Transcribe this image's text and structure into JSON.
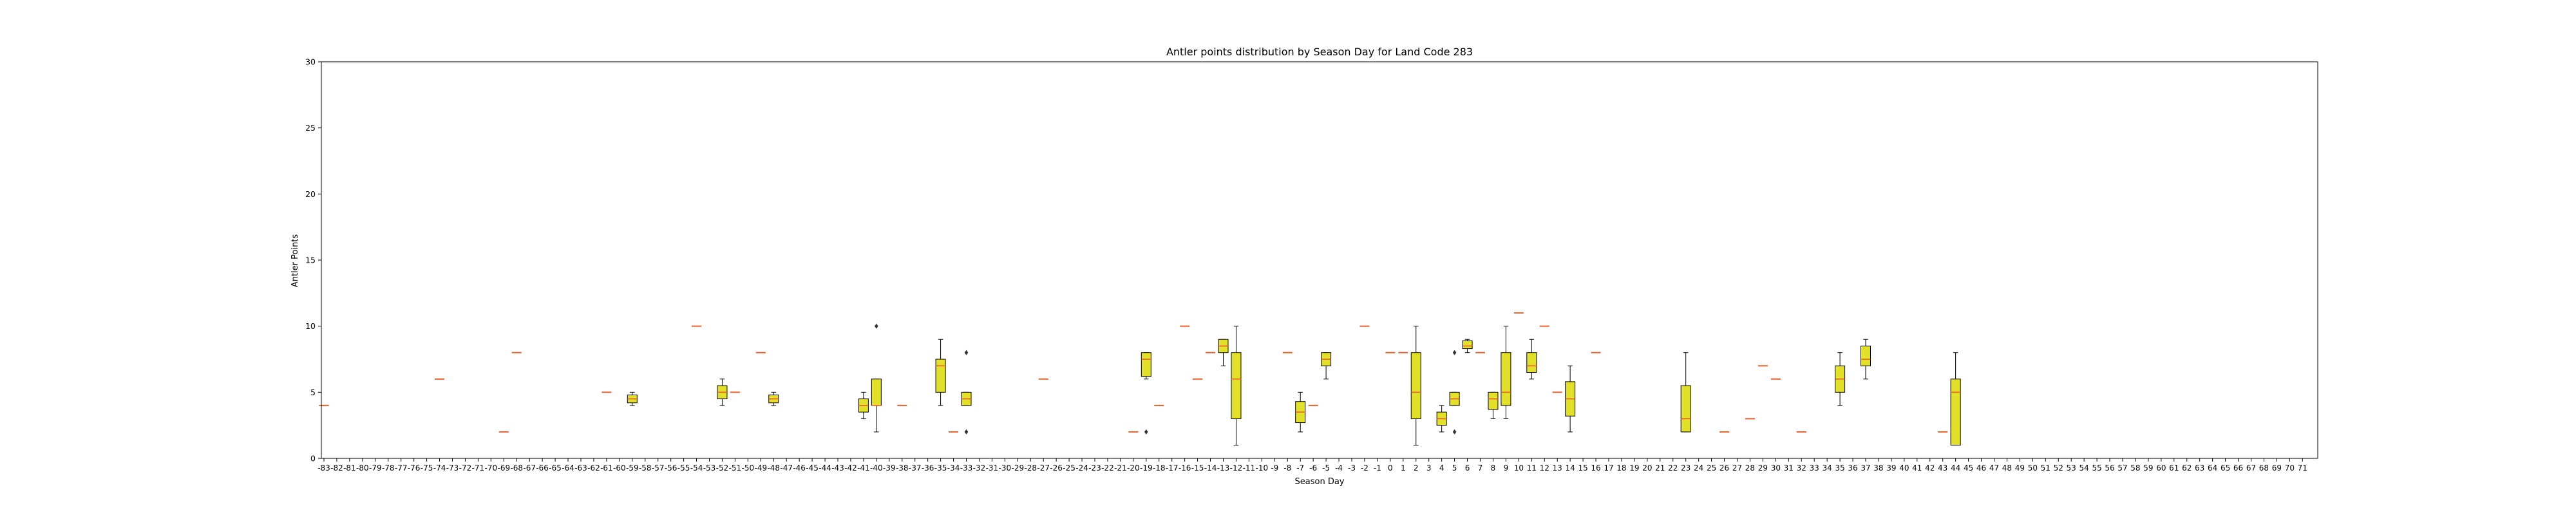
{
  "chart_data": {
    "type": "box",
    "title": "Antler points distribution by Season Day for Land Code 283",
    "xlabel": "Season Day",
    "ylabel": "Antler Points",
    "ylim": [
      0,
      30
    ],
    "yticks": [
      0,
      5,
      10,
      15,
      20,
      25,
      30
    ],
    "xlim": [
      -83,
      71
    ],
    "grid": false,
    "colors": {
      "box_fill": "#e3e02a",
      "median": "#e8612c",
      "frame": "#000000"
    },
    "single_values": [
      {
        "day": -83,
        "value": 4
      },
      {
        "day": -74,
        "value": 6
      },
      {
        "day": -69,
        "value": 2
      },
      {
        "day": -68,
        "value": 8
      },
      {
        "day": -61,
        "value": 5
      },
      {
        "day": -54,
        "value": 10
      },
      {
        "day": -51,
        "value": 5
      },
      {
        "day": -49,
        "value": 8
      },
      {
        "day": -38,
        "value": 4
      },
      {
        "day": -34,
        "value": 2
      },
      {
        "day": -27,
        "value": 6
      },
      {
        "day": -20,
        "value": 2
      },
      {
        "day": -18,
        "value": 4
      },
      {
        "day": -16,
        "value": 10
      },
      {
        "day": -15,
        "value": 6
      },
      {
        "day": -14,
        "value": 8
      },
      {
        "day": -8,
        "value": 8
      },
      {
        "day": -6,
        "value": 4
      },
      {
        "day": -2,
        "value": 10
      },
      {
        "day": 0,
        "value": 8
      },
      {
        "day": 1,
        "value": 8
      },
      {
        "day": 7,
        "value": 8
      },
      {
        "day": 10,
        "value": 11
      },
      {
        "day": 12,
        "value": 10
      },
      {
        "day": 13,
        "value": 5
      },
      {
        "day": 16,
        "value": 8
      },
      {
        "day": 26,
        "value": 2
      },
      {
        "day": 28,
        "value": 3
      },
      {
        "day": 29,
        "value": 7
      },
      {
        "day": 30,
        "value": 6
      },
      {
        "day": 32,
        "value": 2
      },
      {
        "day": 43,
        "value": 2
      }
    ],
    "boxes": [
      {
        "day": -59,
        "min": 4,
        "q1": 4.2,
        "median": 4.5,
        "q3": 4.8,
        "max": 5,
        "outliers": []
      },
      {
        "day": -52,
        "min": 4,
        "q1": 4.5,
        "median": 5,
        "q3": 5.5,
        "max": 6,
        "outliers": []
      },
      {
        "day": -48,
        "min": 4,
        "q1": 4.2,
        "median": 4.5,
        "q3": 4.8,
        "max": 5,
        "outliers": []
      },
      {
        "day": -41,
        "min": 3,
        "q1": 3.5,
        "median": 4,
        "q3": 4.5,
        "max": 5,
        "outliers": []
      },
      {
        "day": -40,
        "min": 2,
        "q1": 4,
        "median": 4,
        "q3": 6,
        "max": 6,
        "outliers": [
          10
        ]
      },
      {
        "day": -35,
        "min": 4,
        "q1": 5,
        "median": 7,
        "q3": 7.5,
        "max": 9,
        "outliers": []
      },
      {
        "day": -33,
        "min": 4,
        "q1": 4,
        "median": 4.5,
        "q3": 5,
        "max": 5,
        "outliers": [
          8,
          2
        ]
      },
      {
        "day": -19,
        "min": 6,
        "q1": 6.2,
        "median": 7.5,
        "q3": 8,
        "max": 8,
        "outliers": [
          2
        ]
      },
      {
        "day": -13,
        "min": 7,
        "q1": 8,
        "median": 8.5,
        "q3": 9,
        "max": 9,
        "outliers": []
      },
      {
        "day": -12,
        "min": 1,
        "q1": 3,
        "median": 6,
        "q3": 8,
        "max": 10,
        "outliers": []
      },
      {
        "day": -7,
        "min": 2,
        "q1": 2.7,
        "median": 3.5,
        "q3": 4.3,
        "max": 5,
        "outliers": []
      },
      {
        "day": -5,
        "min": 6,
        "q1": 7,
        "median": 7.5,
        "q3": 8,
        "max": 8,
        "outliers": []
      },
      {
        "day": 2,
        "min": 1,
        "q1": 3,
        "median": 5,
        "q3": 8,
        "max": 10,
        "outliers": []
      },
      {
        "day": 4,
        "min": 2,
        "q1": 2.5,
        "median": 3,
        "q3": 3.5,
        "max": 4,
        "outliers": []
      },
      {
        "day": 5,
        "min": 4,
        "q1": 4,
        "median": 4.5,
        "q3": 5,
        "max": 5,
        "outliers": [
          8,
          2
        ]
      },
      {
        "day": 6,
        "min": 8,
        "q1": 8.3,
        "median": 8.5,
        "q3": 8.9,
        "max": 9,
        "outliers": []
      },
      {
        "day": 8,
        "min": 3,
        "q1": 3.7,
        "median": 4.5,
        "q3": 5,
        "max": 5,
        "outliers": []
      },
      {
        "day": 9,
        "min": 3,
        "q1": 4,
        "median": 5,
        "q3": 8,
        "max": 10,
        "outliers": []
      },
      {
        "day": 11,
        "min": 6,
        "q1": 6.5,
        "median": 7,
        "q3": 8,
        "max": 9,
        "outliers": []
      },
      {
        "day": 14,
        "min": 2,
        "q1": 3.2,
        "median": 4.5,
        "q3": 5.8,
        "max": 7,
        "outliers": []
      },
      {
        "day": 23,
        "min": 2,
        "q1": 2,
        "median": 3,
        "q3": 5.5,
        "max": 8,
        "outliers": []
      },
      {
        "day": 35,
        "min": 4,
        "q1": 5,
        "median": 6,
        "q3": 7,
        "max": 8,
        "outliers": []
      },
      {
        "day": 37,
        "min": 6,
        "q1": 7,
        "median": 7.5,
        "q3": 8.5,
        "max": 9,
        "outliers": []
      },
      {
        "day": 44,
        "min": 1,
        "q1": 1,
        "median": 5,
        "q3": 6,
        "max": 8,
        "outliers": []
      }
    ]
  }
}
